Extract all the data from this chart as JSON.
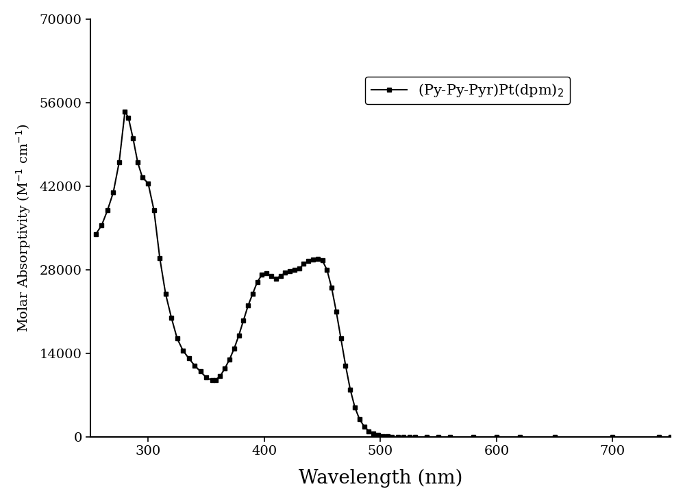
{
  "xlabel": "Wavelength (nm)",
  "ylabel_display": "Molar Absorptivity (M$^{-1}$ cm$^{-1}$)",
  "legend_label": "(Py-Py-Pyr)Pt(dpm)$_2$",
  "xlim": [
    250,
    750
  ],
  "ylim": [
    0,
    70000
  ],
  "yticks": [
    0,
    14000,
    28000,
    42000,
    56000,
    70000
  ],
  "xticks": [
    300,
    400,
    500,
    600,
    700
  ],
  "line_color": "#000000",
  "marker": "s",
  "markersize": 5,
  "linewidth": 1.5,
  "fig_facecolor": "#ffffff",
  "ax_facecolor": "#ffffff",
  "wavelengths": [
    255,
    260,
    265,
    270,
    275,
    280,
    283,
    287,
    291,
    295,
    300,
    305,
    310,
    315,
    320,
    325,
    330,
    335,
    340,
    345,
    350,
    355,
    358,
    362,
    366,
    370,
    374,
    378,
    382,
    386,
    390,
    394,
    398,
    402,
    406,
    410,
    414,
    418,
    422,
    426,
    430,
    434,
    438,
    442,
    446,
    450,
    454,
    458,
    462,
    466,
    470,
    474,
    478,
    482,
    486,
    490,
    494,
    498,
    502,
    506,
    510,
    515,
    520,
    525,
    530,
    540,
    550,
    560,
    580,
    600,
    620,
    650,
    700,
    740,
    750
  ],
  "absorptivity": [
    34000,
    35500,
    38000,
    41000,
    46000,
    54500,
    53500,
    50000,
    46000,
    43500,
    42500,
    38000,
    30000,
    24000,
    20000,
    16500,
    14500,
    13200,
    12000,
    11000,
    10000,
    9500,
    9600,
    10200,
    11500,
    13000,
    14800,
    17000,
    19500,
    22000,
    24000,
    26000,
    27200,
    27400,
    27000,
    26500,
    27000,
    27500,
    27800,
    28000,
    28200,
    29000,
    29500,
    29700,
    29800,
    29600,
    28000,
    25000,
    21000,
    16500,
    12000,
    8000,
    5000,
    3000,
    1800,
    1000,
    600,
    350,
    200,
    100,
    50,
    30,
    15,
    8,
    4,
    2,
    1,
    0,
    0,
    0,
    0,
    0,
    0,
    0,
    0
  ]
}
